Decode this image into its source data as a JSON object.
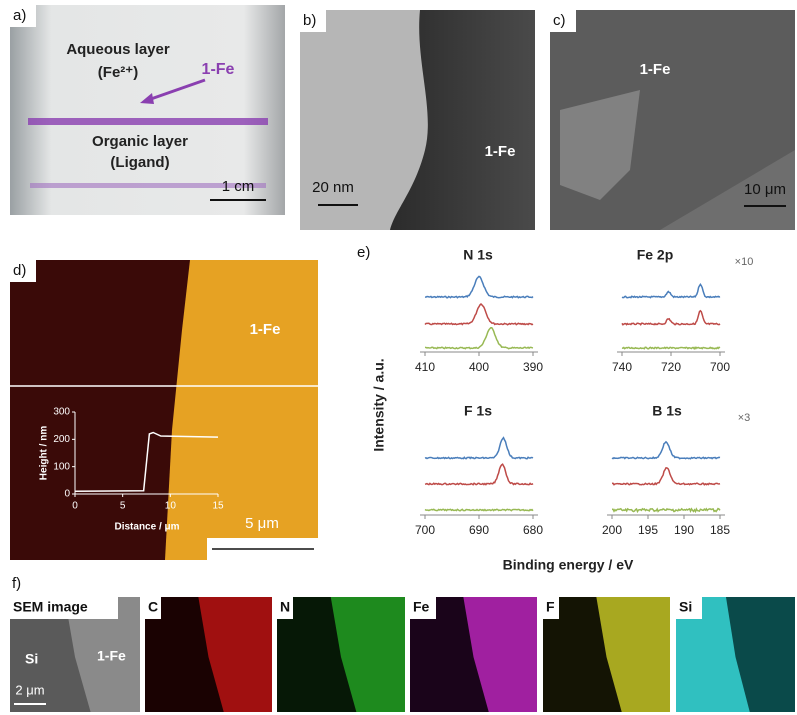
{
  "panels": {
    "a": {
      "label": "a)",
      "aqueous": "Aqueous layer",
      "ion": "(Fe²⁺)",
      "sample": "1-Fe",
      "organic": "Organic layer",
      "ligand": "(Ligand)",
      "scale_bar": "1 cm"
    },
    "b": {
      "label": "b)",
      "sample": "1-Fe",
      "scale_bar": "20 nm"
    },
    "c": {
      "label": "c)",
      "sample": "1-Fe",
      "scale_bar": "10 μm"
    },
    "d": {
      "label": "d)",
      "sample": "1-Fe",
      "scale_bar": "5 μm",
      "inset": {
        "type": "line",
        "x_label": "Distance / μm",
        "y_label": "Height / nm",
        "xlim": [
          0,
          15
        ],
        "xticks": [
          0,
          5,
          10,
          15
        ],
        "ylim": [
          0,
          300
        ],
        "yticks": [
          0,
          100,
          200,
          300
        ],
        "x": [
          0,
          7.2,
          7.8,
          8.2,
          9,
          15
        ],
        "values": [
          10,
          12,
          220,
          225,
          212,
          208
        ],
        "color": "#ffffff"
      }
    },
    "e": {
      "label": "e)",
      "y_label": "Intensity / a.u.",
      "x_label": "Binding energy / eV",
      "plots": [
        {
          "type": "line",
          "title": "N 1s",
          "xlim": [
            410,
            390
          ],
          "xticks": [
            410,
            400,
            390
          ],
          "series": [
            {
              "color": "#4a7ebb",
              "peaks": [
                400
              ]
            },
            {
              "color": "#be4b48",
              "peaks": [
                399.6
              ]
            },
            {
              "color": "#98b954",
              "peaks": [
                397.8
              ]
            }
          ]
        },
        {
          "type": "line",
          "title": "Fe 2p",
          "multiplier": "×10",
          "xlim": [
            740,
            700
          ],
          "xticks": [
            740,
            720,
            700
          ],
          "series": [
            {
              "color": "#4a7ebb",
              "peaks": [
                721,
                708
              ]
            },
            {
              "color": "#be4b48",
              "peaks": [
                721,
                708
              ]
            },
            {
              "color": "#98b954",
              "peaks": []
            }
          ]
        },
        {
          "type": "line",
          "title": "F 1s",
          "xlim": [
            700,
            680
          ],
          "xticks": [
            700,
            690,
            680
          ],
          "series": [
            {
              "color": "#4a7ebb",
              "peaks": [
                685.5
              ]
            },
            {
              "color": "#be4b48",
              "peaks": [
                685.7
              ]
            },
            {
              "color": "#98b954",
              "peaks": []
            }
          ]
        },
        {
          "type": "line",
          "title": "B 1s",
          "multiplier": "×3",
          "xlim": [
            200,
            185
          ],
          "xticks": [
            200,
            195,
            190,
            185
          ],
          "series": [
            {
              "color": "#4a7ebb",
              "peaks": [
                192.5
              ]
            },
            {
              "color": "#be4b48",
              "peaks": [
                192.4
              ]
            },
            {
              "color": "#98b954",
              "peaks": []
            }
          ]
        }
      ]
    },
    "f": {
      "label": "f)",
      "si": "Si",
      "sample": "1-Fe",
      "scale_bar": "2 μm",
      "tiles": [
        {
          "title": "SEM image"
        },
        {
          "title": "C"
        },
        {
          "title": "N"
        },
        {
          "title": "Fe"
        },
        {
          "title": "F"
        },
        {
          "title": "Si"
        }
      ]
    }
  }
}
